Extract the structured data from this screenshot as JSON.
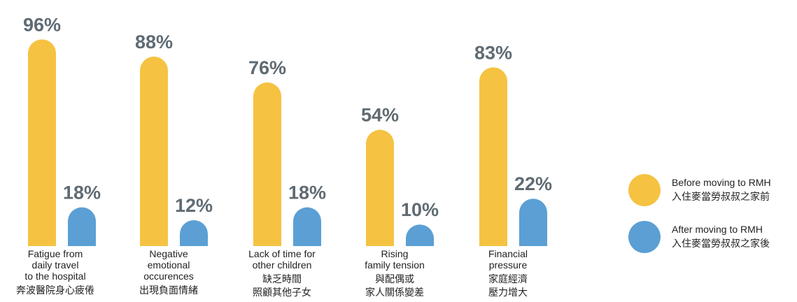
{
  "title": "",
  "chart_data": {
    "type": "bar",
    "categories": [
      {
        "en": [
          "Fatigue from",
          "daily travel",
          "to the hospital"
        ],
        "zh": [
          "奔波醫院身心疲倦"
        ]
      },
      {
        "en": [
          "Negative",
          "emotional",
          "occurences"
        ],
        "zh": [
          "出現負面情緒"
        ]
      },
      {
        "en": [
          "Lack of time for",
          "other children"
        ],
        "zh": [
          "缺乏時間",
          "照顧其他子女"
        ]
      },
      {
        "en": [
          "Rising",
          "family tension"
        ],
        "zh": [
          "與配偶或",
          "家人關係變差"
        ]
      },
      {
        "en": [
          "Financial",
          "pressure"
        ],
        "zh": [
          "家庭經濟",
          "壓力增大"
        ]
      }
    ],
    "series": [
      {
        "name": "Before moving to RMH",
        "name_zh": "入住麥當勞叔叔之家前",
        "color": "#f5c242",
        "values": [
          96,
          88,
          76,
          54,
          83
        ],
        "labels": [
          "96%",
          "88%",
          "76%",
          "54%",
          "83%"
        ]
      },
      {
        "name": "After moving to RMH",
        "name_zh": "入住麥當勞叔叔之家後",
        "color": "#5b9fd4",
        "values": [
          18,
          12,
          18,
          10,
          22
        ],
        "labels": [
          "18%",
          "12%",
          "18%",
          "10%",
          "22%"
        ]
      }
    ],
    "ylim": [
      0,
      100
    ],
    "grid": false,
    "legend_position": "right"
  }
}
